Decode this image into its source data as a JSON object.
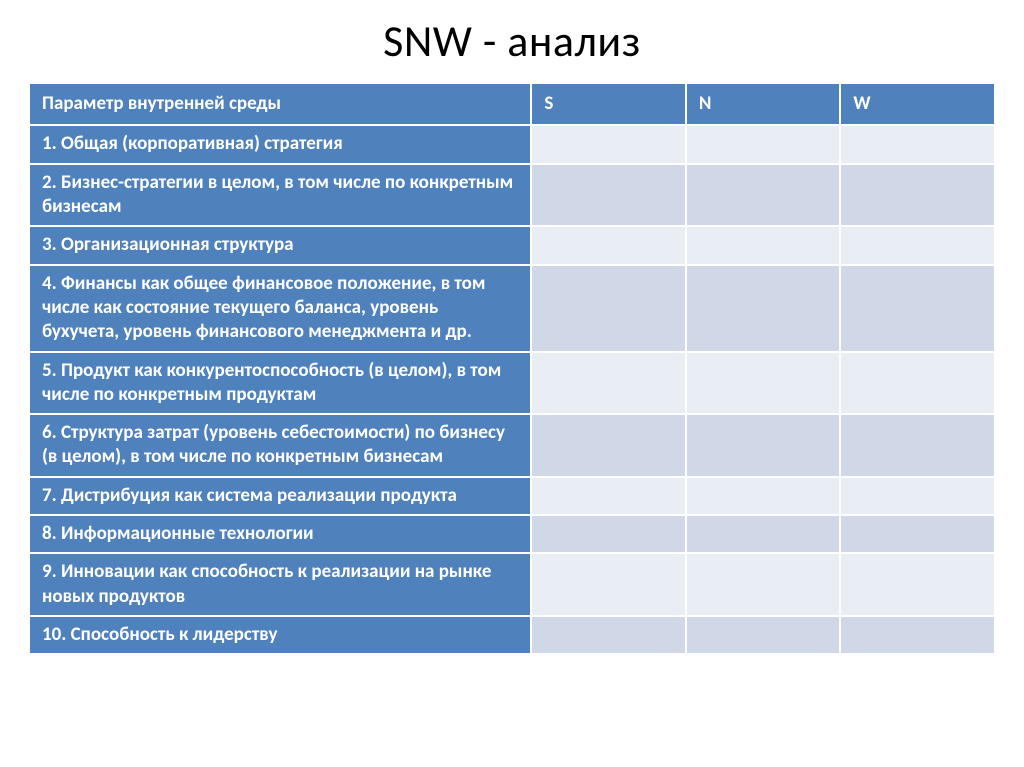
{
  "title": "SNW  - анализ",
  "table": {
    "type": "table",
    "header": {
      "param": "Параметр внутренней среды",
      "s": "S",
      "n": "N",
      "w": "W"
    },
    "header_bg": "#4f81bd",
    "header_text_color": "#ffffff",
    "label_bg": "#4f81bd",
    "label_text_color": "#ffffff",
    "band_a_bg": "#e9edf4",
    "band_b_bg": "#d0d8e8",
    "border_color": "#ffffff",
    "font_size": 19,
    "column_widths_pct": [
      52,
      16,
      16,
      16
    ],
    "rows": [
      {
        "label": "1. Общая (корпоративная) стратегия",
        "s": "",
        "n": "",
        "w": "",
        "band": "a"
      },
      {
        "label": "2. Бизнес-стратегии в целом, в том числе по конкретным бизнесам",
        "s": "",
        "n": "",
        "w": "",
        "band": "b"
      },
      {
        "label": "3. Организационная структура",
        "s": "",
        "n": "",
        "w": "",
        "band": "a"
      },
      {
        "label": "4. Финансы как общее финансовое положение, в том числе как состояние текущего баланса, уровень бухучета, уровень финансового менеджмента и др.",
        "s": "",
        "n": "",
        "w": "",
        "band": "b"
      },
      {
        "label": "5. Продукт как конкурентоспособность (в целом), в том числе по конкретным продуктам",
        "s": "",
        "n": "",
        "w": "",
        "band": "a"
      },
      {
        "label": "6. Структура затрат (уровень себестоимости) по бизнесу (в целом), в том числе по конкретным бизнесам",
        "s": "",
        "n": "",
        "w": "",
        "band": "b"
      },
      {
        "label": "7. Дистрибуция как система реализации продукта",
        "s": "",
        "n": "",
        "w": "",
        "band": "a"
      },
      {
        "label": "8. Информационные технологии",
        "s": "",
        "n": "",
        "w": "",
        "band": "b"
      },
      {
        "label": "9. Инновации как способность к реализации на рынке новых продуктов",
        "s": "",
        "n": "",
        "w": "",
        "band": "a"
      },
      {
        "label": "10. Способность к лидерству",
        "s": "",
        "n": "",
        "w": "",
        "band": "b"
      }
    ]
  }
}
